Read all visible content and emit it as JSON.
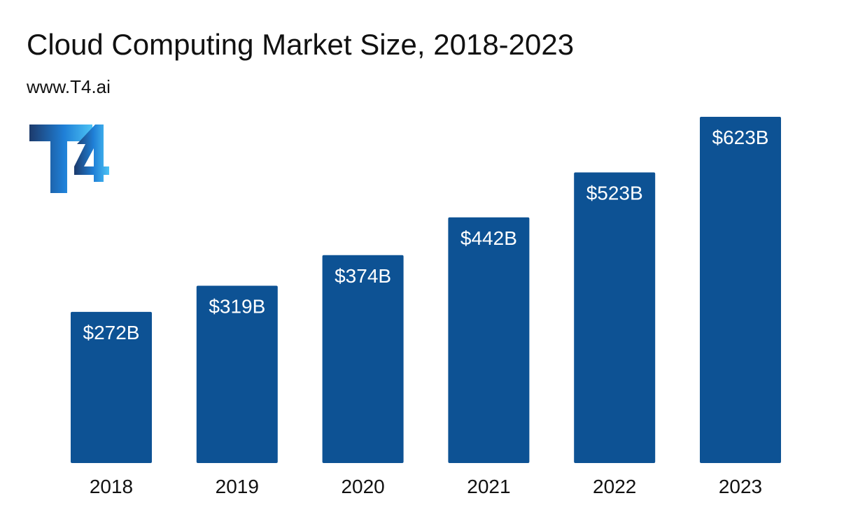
{
  "header": {
    "title": "Cloud Computing Market Size, 2018-2023",
    "subtitle": "www.T4.ai"
  },
  "logo": {
    "text": "T4",
    "colors": [
      "#1d3a6b",
      "#1f7fd6",
      "#4cc3f5"
    ]
  },
  "colors": {
    "bar": "#0d5294",
    "bar_label": "#ffffff",
    "tick_label": "#111111"
  },
  "chart_data": {
    "type": "bar",
    "categories": [
      "2018",
      "2019",
      "2020",
      "2021",
      "2022",
      "2023"
    ],
    "values": [
      272,
      319,
      374,
      442,
      523,
      623
    ],
    "data_labels": [
      "$272B",
      "$319B",
      "$374B",
      "$442B",
      "$523B",
      "$623B"
    ],
    "title": "Cloud Computing Market Size, 2018-2023",
    "xlabel": "",
    "ylabel": "",
    "ylim": [
      0,
      623
    ],
    "grid": false
  }
}
